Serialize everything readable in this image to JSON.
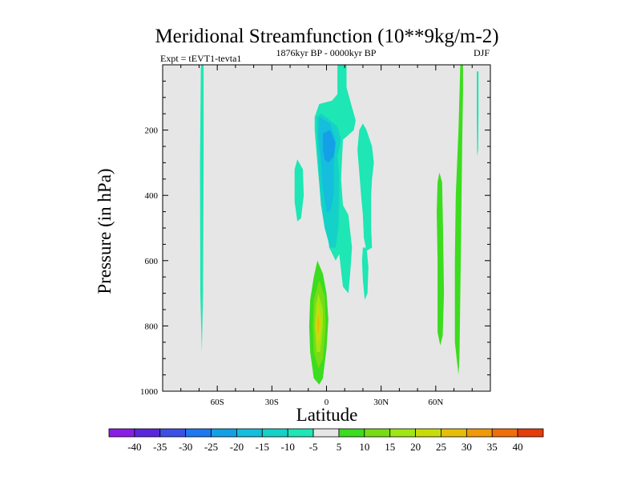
{
  "chart_data": {
    "type": "contour",
    "title": "Meridional Streamfunction (10**9kg/m-2)",
    "left_label": "Expt = tEVT1-tevta1",
    "center_label": "1876kyr BP - 0000kyr BP",
    "right_label": "DJF",
    "xlabel": "Latitude",
    "ylabel": "Pressure (in hPa)",
    "xlim": [
      -90,
      90
    ],
    "ylim": [
      1000,
      0
    ],
    "x_ticks": [
      {
        "value": -60,
        "label": "60S"
      },
      {
        "value": -30,
        "label": "30S"
      },
      {
        "value": 0,
        "label": "0"
      },
      {
        "value": 30,
        "label": "30N"
      },
      {
        "value": 60,
        "label": "60N"
      }
    ],
    "y_ticks": [
      {
        "value": 200,
        "label": "200"
      },
      {
        "value": 400,
        "label": "400"
      },
      {
        "value": 600,
        "label": "600"
      },
      {
        "value": 800,
        "label": "800"
      },
      {
        "value": 1000,
        "label": "1000"
      }
    ],
    "background_color": "#e6e6e6",
    "colorbar": {
      "levels": [
        "-40",
        "-35",
        "-30",
        "-25",
        "-20",
        "-15",
        "-10",
        "-5",
        "5",
        "10",
        "15",
        "20",
        "25",
        "30",
        "35",
        "40"
      ],
      "colors": [
        "#8a1ee6",
        "#5a28dc",
        "#3c50e6",
        "#1e78f0",
        "#14a0e6",
        "#14bedc",
        "#14d2c8",
        "#1ee6b4",
        "#e6e6e6",
        "#3cdc1e",
        "#78dc14",
        "#a0e614",
        "#c8dc0a",
        "#e6be0a",
        "#f09a0a",
        "#f06e0a",
        "#e63c0a"
      ]
    },
    "regions": [
      {
        "name": "narrow-70S-column",
        "level": "-5",
        "points": [
          [
            -69,
            0
          ],
          [
            -67.5,
            0
          ],
          [
            -67.5,
            300
          ],
          [
            -67.8,
            700
          ],
          [
            -68.5,
            880
          ],
          [
            -69.3,
            700
          ],
          [
            -69.5,
            300
          ]
        ]
      },
      {
        "name": "south-cell-edge",
        "level": "-5",
        "points": [
          [
            -16,
            290
          ],
          [
            -13,
            320
          ],
          [
            -12.5,
            400
          ],
          [
            -14,
            470
          ],
          [
            -16,
            480
          ],
          [
            -17.5,
            420
          ],
          [
            -17.5,
            320
          ]
        ]
      },
      {
        "name": "equatorial-negative-cell",
        "level": "-5",
        "points": [
          [
            6,
            0
          ],
          [
            11,
            0
          ],
          [
            11,
            70
          ],
          [
            15,
            150
          ],
          [
            16,
            170
          ],
          [
            15,
            200
          ],
          [
            9,
            230
          ],
          [
            8,
            350
          ],
          [
            9,
            430
          ],
          [
            12,
            460
          ],
          [
            14,
            560
          ],
          [
            13,
            640
          ],
          [
            12,
            700
          ],
          [
            9,
            680
          ],
          [
            7,
            580
          ],
          [
            5,
            600
          ],
          [
            1.5,
            560
          ],
          [
            0,
            500
          ],
          [
            -3,
            430
          ],
          [
            -5,
            300
          ],
          [
            -6.5,
            200
          ],
          [
            -6.5,
            160
          ],
          [
            -4,
            120
          ],
          [
            3,
            110
          ],
          [
            6,
            90
          ]
        ]
      },
      {
        "name": "equatorial-negative-cell",
        "level": "-10",
        "points": [
          [
            -5.5,
            160
          ],
          [
            -3,
            150
          ],
          [
            2,
            170
          ],
          [
            6,
            190
          ],
          [
            8,
            230
          ],
          [
            6,
            280
          ],
          [
            7,
            340
          ],
          [
            7,
            420
          ],
          [
            6.5,
            500
          ],
          [
            5,
            560
          ],
          [
            2,
            560
          ],
          [
            -1,
            500
          ],
          [
            -3,
            430
          ],
          [
            -4,
            350
          ],
          [
            -5,
            260
          ]
        ]
      },
      {
        "name": "equatorial-negative-cell",
        "level": "-15",
        "points": [
          [
            -4,
            160
          ],
          [
            2,
            180
          ],
          [
            5,
            230
          ],
          [
            4,
            300
          ],
          [
            4,
            400
          ],
          [
            2,
            450
          ],
          [
            0,
            450
          ],
          [
            -2,
            380
          ],
          [
            -3,
            300
          ],
          [
            -4.5,
            220
          ]
        ]
      },
      {
        "name": "equatorial-negative-cell",
        "level": "-20",
        "points": [
          [
            -2,
            210
          ],
          [
            2,
            200
          ],
          [
            5,
            240
          ],
          [
            4,
            280
          ],
          [
            1,
            300
          ],
          [
            -1,
            290
          ],
          [
            -2,
            260
          ]
        ]
      },
      {
        "name": "north-negative-strip",
        "level": "-5",
        "points": [
          [
            20,
            180
          ],
          [
            22,
            200
          ],
          [
            25,
            250
          ],
          [
            26,
            300
          ],
          [
            25,
            350
          ],
          [
            24.5,
            400
          ],
          [
            24.5,
            500
          ],
          [
            25,
            560
          ],
          [
            22,
            570
          ],
          [
            20.5,
            530
          ],
          [
            20,
            460
          ],
          [
            19,
            400
          ],
          [
            18,
            330
          ],
          [
            17,
            260
          ],
          [
            18,
            200
          ]
        ]
      },
      {
        "name": "north-negative-strip-lower",
        "level": "-5",
        "points": [
          [
            20,
            560
          ],
          [
            22,
            560
          ],
          [
            23,
            620
          ],
          [
            22.5,
            700
          ],
          [
            21,
            720
          ],
          [
            20,
            660
          ],
          [
            19.5,
            600
          ]
        ]
      },
      {
        "name": "surface-positive-cell",
        "level": "5",
        "points": [
          [
            -5,
            600
          ],
          [
            -2,
            640
          ],
          [
            0,
            700
          ],
          [
            1,
            780
          ],
          [
            0,
            870
          ],
          [
            -2,
            960
          ],
          [
            -4,
            980
          ],
          [
            -7,
            960
          ],
          [
            -9,
            880
          ],
          [
            -9.5,
            800
          ],
          [
            -9,
            720
          ],
          [
            -7,
            650
          ]
        ]
      },
      {
        "name": "surface-positive-cell",
        "level": "10",
        "points": [
          [
            -4,
            660
          ],
          [
            -1,
            710
          ],
          [
            -0.5,
            800
          ],
          [
            -2,
            900
          ],
          [
            -4.5,
            930
          ],
          [
            -7,
            880
          ],
          [
            -7.5,
            800
          ],
          [
            -7,
            720
          ]
        ]
      },
      {
        "name": "surface-positive-cell",
        "level": "15",
        "points": [
          [
            -4.5,
            700
          ],
          [
            -2,
            750
          ],
          [
            -2,
            800
          ],
          [
            -3.5,
            880
          ],
          [
            -5.5,
            880
          ],
          [
            -6.5,
            800
          ],
          [
            -6,
            740
          ]
        ]
      },
      {
        "name": "surface-positive-cell",
        "level": "20",
        "points": [
          [
            -4.5,
            730
          ],
          [
            -3,
            780
          ],
          [
            -3.5,
            840
          ],
          [
            -5,
            860
          ],
          [
            -6,
            800
          ]
        ]
      },
      {
        "name": "surface-positive-cell",
        "level": "25",
        "points": [
          [
            -4.5,
            760
          ],
          [
            -3.8,
            790
          ],
          [
            -4.2,
            820
          ],
          [
            -5,
            820
          ],
          [
            -5.3,
            790
          ]
        ]
      },
      {
        "name": "north-positive-strip-60N",
        "level": "5",
        "points": [
          [
            62,
            330
          ],
          [
            63.5,
            360
          ],
          [
            64,
            500
          ],
          [
            64.5,
            700
          ],
          [
            63.8,
            830
          ],
          [
            62.5,
            860
          ],
          [
            61,
            820
          ],
          [
            61,
            600
          ],
          [
            60.5,
            450
          ],
          [
            61,
            360
          ]
        ]
      },
      {
        "name": "north-positive-strip-75N",
        "level": "5",
        "points": [
          [
            73.5,
            0
          ],
          [
            75,
            0
          ],
          [
            75,
            80
          ],
          [
            74.5,
            250
          ],
          [
            74,
            500
          ],
          [
            73.5,
            700
          ],
          [
            73,
            900
          ],
          [
            72.5,
            950
          ],
          [
            70.5,
            850
          ],
          [
            70.5,
            600
          ],
          [
            71,
            400
          ],
          [
            72.5,
            200
          ]
        ]
      },
      {
        "name": "north-negative-sliver",
        "level": "-5",
        "points": [
          [
            82.5,
            20
          ],
          [
            83.5,
            20
          ],
          [
            83.5,
            150
          ],
          [
            83.3,
            260
          ],
          [
            82.8,
            280
          ],
          [
            82.5,
            150
          ]
        ]
      }
    ]
  }
}
